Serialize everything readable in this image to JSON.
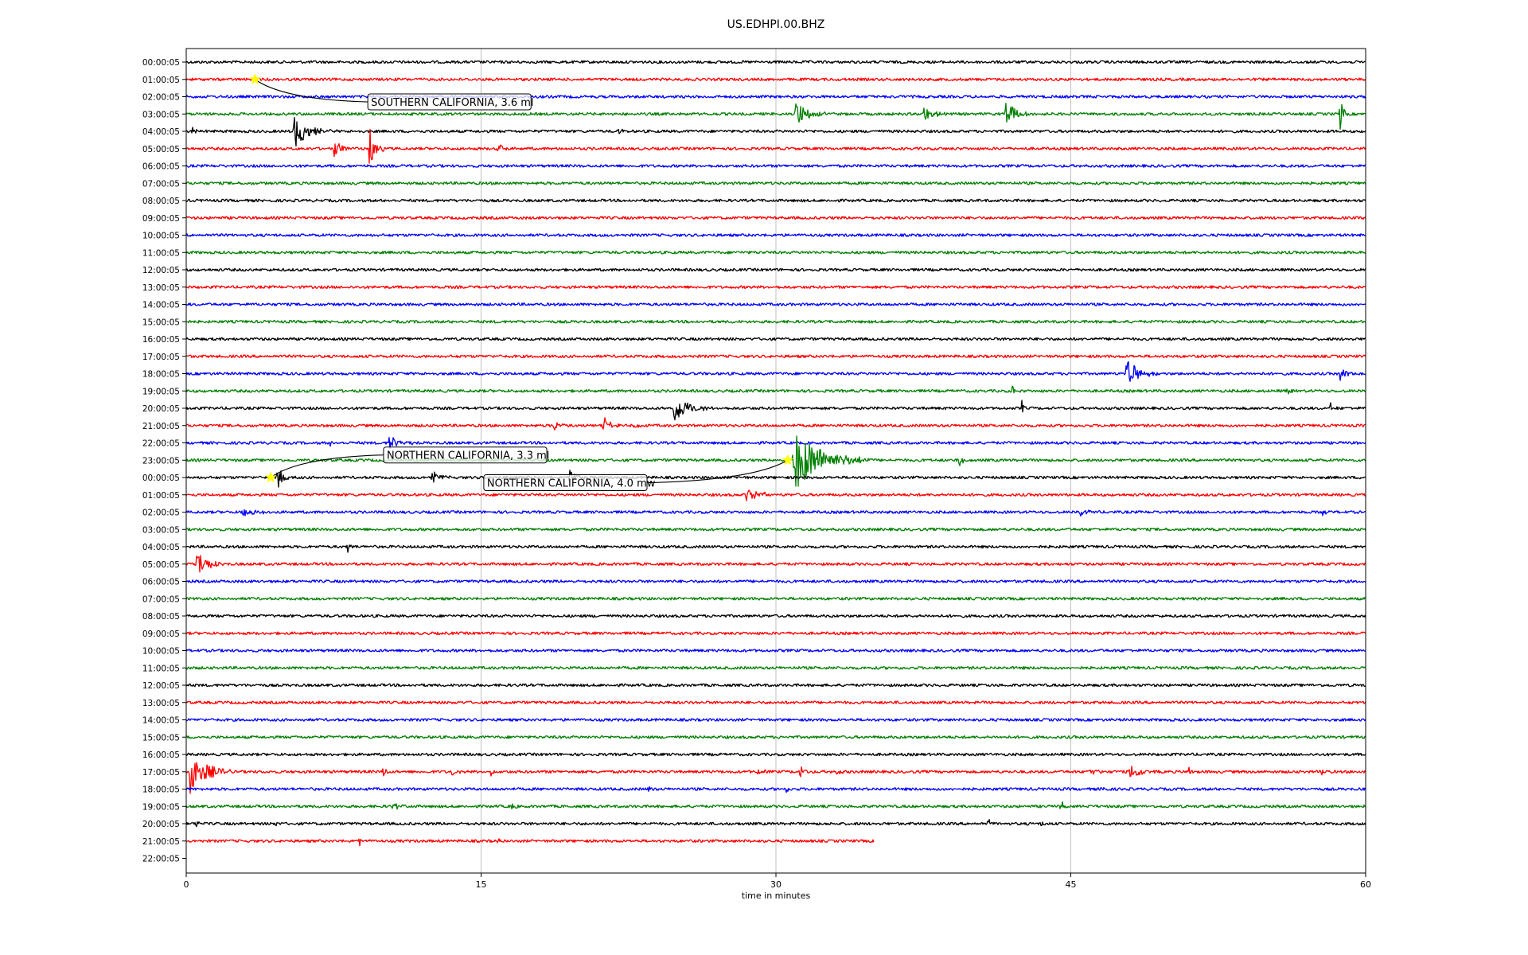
{
  "chart_data": {
    "type": "line",
    "title": "US.EDHPI.00.BHZ",
    "xlabel": "time in minutes",
    "ylabel": "",
    "xlim": [
      0,
      60
    ],
    "xticks": [
      0,
      15,
      30,
      45,
      60
    ],
    "grid": "vertical",
    "row_labels": [
      "00:00:05",
      "01:00:05",
      "02:00:05",
      "03:00:05",
      "04:00:05",
      "05:00:05",
      "06:00:05",
      "07:00:05",
      "08:00:05",
      "09:00:05",
      "10:00:05",
      "11:00:05",
      "12:00:05",
      "13:00:05",
      "14:00:05",
      "15:00:05",
      "16:00:05",
      "17:00:05",
      "18:00:05",
      "19:00:05",
      "20:00:05",
      "21:00:05",
      "22:00:05",
      "23:00:05",
      "00:00:05",
      "01:00:05",
      "02:00:05",
      "03:00:05",
      "04:00:05",
      "05:00:05",
      "06:00:05",
      "07:00:05",
      "08:00:05",
      "09:00:05",
      "10:00:05",
      "11:00:05",
      "12:00:05",
      "13:00:05",
      "14:00:05",
      "15:00:05",
      "16:00:05",
      "17:00:05",
      "18:00:05",
      "19:00:05",
      "20:00:05",
      "21:00:05",
      "22:00:05"
    ],
    "trace_colors": [
      "#000000",
      "#ff0000",
      "#0000ff",
      "#008000"
    ],
    "trace_end_minutes": {
      "45": 35,
      "46": 0
    },
    "bursts": [
      {
        "row": 3,
        "t": 31.0,
        "amp": 1.3,
        "dur": 1.5
      },
      {
        "row": 3,
        "t": 37.5,
        "amp": 0.8,
        "dur": 1.2
      },
      {
        "row": 3,
        "t": 41.7,
        "amp": 1.5,
        "dur": 1.2
      },
      {
        "row": 3,
        "t": 58.7,
        "amp": 1.7,
        "dur": 0.4
      },
      {
        "row": 4,
        "t": 0.3,
        "amp": 0.5,
        "dur": 0.5
      },
      {
        "row": 4,
        "t": 5.5,
        "amp": 1.6,
        "dur": 2.0
      },
      {
        "row": 4,
        "t": 22.0,
        "amp": 0.4,
        "dur": 0.5
      },
      {
        "row": 5,
        "t": 7.5,
        "amp": 0.8,
        "dur": 1.2
      },
      {
        "row": 5,
        "t": 9.3,
        "amp": 2.2,
        "dur": 0.8
      },
      {
        "row": 5,
        "t": 15.8,
        "amp": 1.8,
        "dur": 0.5
      },
      {
        "row": 18,
        "t": 47.8,
        "amp": 1.4,
        "dur": 1.7
      },
      {
        "row": 18,
        "t": 58.7,
        "amp": 0.6,
        "dur": 1.3
      },
      {
        "row": 19,
        "t": 42.0,
        "amp": 0.6,
        "dur": 0.5
      },
      {
        "row": 19,
        "t": 56.0,
        "amp": 0.5,
        "dur": 0.3
      },
      {
        "row": 20,
        "t": 24.8,
        "amp": 1.4,
        "dur": 2.0
      },
      {
        "row": 20,
        "t": 42.5,
        "amp": 0.9,
        "dur": 0.3
      },
      {
        "row": 20,
        "t": 58.2,
        "amp": 0.5,
        "dur": 0.5
      },
      {
        "row": 21,
        "t": 21.2,
        "amp": 1.0,
        "dur": 0.8
      },
      {
        "row": 21,
        "t": 18.7,
        "amp": 0.5,
        "dur": 0.8
      },
      {
        "row": 21,
        "t": 22.8,
        "amp": 0.5,
        "dur": 0.5
      },
      {
        "row": 22,
        "t": 10.3,
        "amp": 0.7,
        "dur": 1.4
      },
      {
        "row": 22,
        "t": 7.3,
        "amp": 0.5,
        "dur": 0.3
      },
      {
        "row": 23,
        "t": 30.9,
        "amp": 2.9,
        "dur": 4.0
      },
      {
        "row": 23,
        "t": 39.3,
        "amp": 0.7,
        "dur": 0.6
      },
      {
        "row": 24,
        "t": 4.6,
        "amp": 1.0,
        "dur": 1.0
      },
      {
        "row": 24,
        "t": 12.5,
        "amp": 0.6,
        "dur": 1.0
      },
      {
        "row": 24,
        "t": 19.5,
        "amp": 0.8,
        "dur": 1.0
      },
      {
        "row": 25,
        "t": 28.5,
        "amp": 0.8,
        "dur": 1.5
      },
      {
        "row": 26,
        "t": 2.8,
        "amp": 0.7,
        "dur": 1.5
      },
      {
        "row": 26,
        "t": 45.5,
        "amp": 0.5,
        "dur": 0.8
      },
      {
        "row": 26,
        "t": 57.8,
        "amp": 0.6,
        "dur": 0.3
      },
      {
        "row": 28,
        "t": 8.2,
        "amp": 0.6,
        "dur": 0.4
      },
      {
        "row": 29,
        "t": 0.5,
        "amp": 1.6,
        "dur": 1.3
      },
      {
        "row": 41,
        "t": 0.2,
        "amp": 2.0,
        "dur": 2.2
      },
      {
        "row": 41,
        "t": 10.0,
        "amp": 0.5,
        "dur": 0.5
      },
      {
        "row": 41,
        "t": 13.5,
        "amp": 0.5,
        "dur": 0.5
      },
      {
        "row": 41,
        "t": 15.5,
        "amp": 0.5,
        "dur": 0.3
      },
      {
        "row": 41,
        "t": 29.0,
        "amp": 0.5,
        "dur": 0.6
      },
      {
        "row": 41,
        "t": 31.2,
        "amp": 0.8,
        "dur": 0.5
      },
      {
        "row": 41,
        "t": 33.0,
        "amp": 0.5,
        "dur": 0.5
      },
      {
        "row": 41,
        "t": 46.0,
        "amp": 0.6,
        "dur": 0.8
      },
      {
        "row": 41,
        "t": 48.0,
        "amp": 0.8,
        "dur": 1.5
      },
      {
        "row": 41,
        "t": 51.0,
        "amp": 0.6,
        "dur": 0.3
      },
      {
        "row": 41,
        "t": 57.7,
        "amp": 0.6,
        "dur": 0.5
      },
      {
        "row": 42,
        "t": 23.5,
        "amp": 0.5,
        "dur": 0.3
      },
      {
        "row": 42,
        "t": 30.5,
        "amp": 0.4,
        "dur": 0.3
      },
      {
        "row": 42,
        "t": 46.6,
        "amp": 0.5,
        "dur": 0.3
      },
      {
        "row": 43,
        "t": 10.5,
        "amp": 0.4,
        "dur": 0.8
      },
      {
        "row": 43,
        "t": 16.5,
        "amp": 0.5,
        "dur": 0.4
      },
      {
        "row": 43,
        "t": 44.5,
        "amp": 0.5,
        "dur": 0.8
      },
      {
        "row": 44,
        "t": 0.5,
        "amp": 0.5,
        "dur": 0.5
      },
      {
        "row": 44,
        "t": 4.5,
        "amp": 0.4,
        "dur": 0.3
      },
      {
        "row": 44,
        "t": 40.8,
        "amp": 0.5,
        "dur": 0.5
      },
      {
        "row": 44,
        "t": 43.5,
        "amp": 0.5,
        "dur": 0.3
      },
      {
        "row": 45,
        "t": 8.8,
        "amp": 0.5,
        "dur": 0.3
      },
      {
        "row": 45,
        "t": 15.8,
        "amp": 0.4,
        "dur": 0.3
      }
    ],
    "annotations": [
      {
        "text": "SOUTHERN CALIFORNIA, 3.6 ml",
        "row": 1,
        "t": 3.5,
        "label_row": 2.3,
        "label_t": 9.4
      },
      {
        "text": "NORTHERN CALIFORNIA, 3.3 ml",
        "row": 24,
        "t": 4.3,
        "label_row": 22.7,
        "label_t": 10.2
      },
      {
        "text": "NORTHERN CALIFORNIA, 4.0 mw",
        "row": 23,
        "t": 30.6,
        "label_row": 24.3,
        "label_t": 15.3
      }
    ]
  }
}
